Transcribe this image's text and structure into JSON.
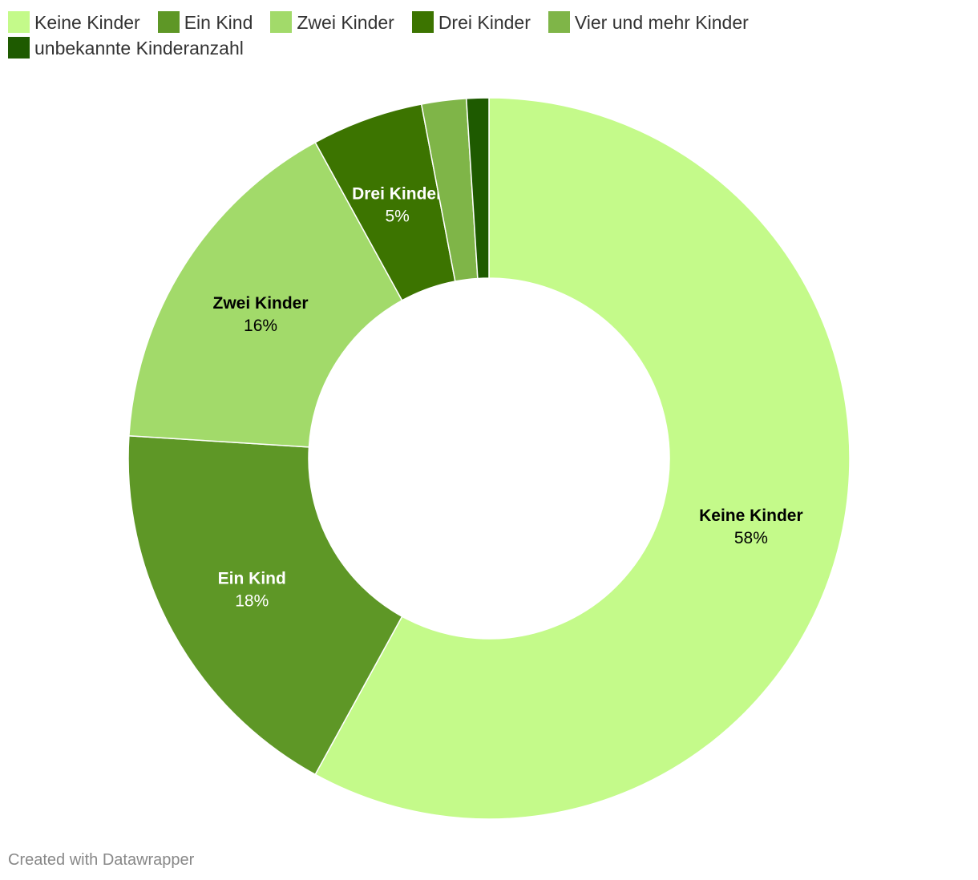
{
  "chart_data": {
    "type": "donut",
    "categories": [
      "Keine Kinder",
      "Ein Kind",
      "Zwei Kinder",
      "Drei Kinder",
      "Vier und mehr Kinder",
      "unbekannte Kinderanzahl"
    ],
    "values": [
      58,
      18,
      16,
      5,
      2,
      1
    ],
    "value_labels": [
      "58%",
      "18%",
      "16%",
      "5%",
      null,
      null
    ],
    "colors": [
      "#c4fa8a",
      "#5e9726",
      "#a2da6a",
      "#3c7400",
      "#7fb548",
      "#1e5a00"
    ],
    "footer": "Created with Datawrapper"
  }
}
